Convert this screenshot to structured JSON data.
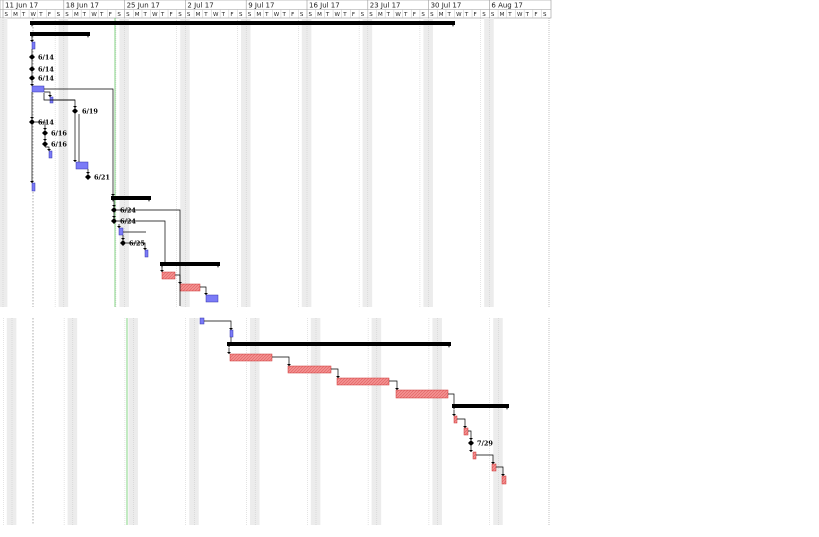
{
  "timescale": {
    "weeks": [
      "11 Jun 17",
      "18 Jun 17",
      "25 Jun 17",
      "2 Jul 17",
      "9 Jul 17",
      "16 Jul 17",
      "23 Jul 17",
      "30 Jul 17",
      "6 Aug 17"
    ],
    "day_letters": [
      "S",
      "M",
      "T",
      "W",
      "T",
      "F",
      "S"
    ]
  },
  "milestones": {
    "m1": "6/14",
    "m2": "6/14",
    "m3": "6/14",
    "m4": "6/19",
    "m5": "6/14",
    "m6": "6/16",
    "m7": "6/16",
    "m8": "6/21",
    "m9": "6/24",
    "m10": "6/24",
    "m11": "6/25",
    "m12": "7/29"
  },
  "colors": {
    "task_bar": "#7b7bf7",
    "critical_bar": "#f39090",
    "summary_bar": "#000000",
    "grid_line": "#c8c8c8",
    "nonworking_shade": "#ececec",
    "current_date_line": "#66cc66"
  }
}
